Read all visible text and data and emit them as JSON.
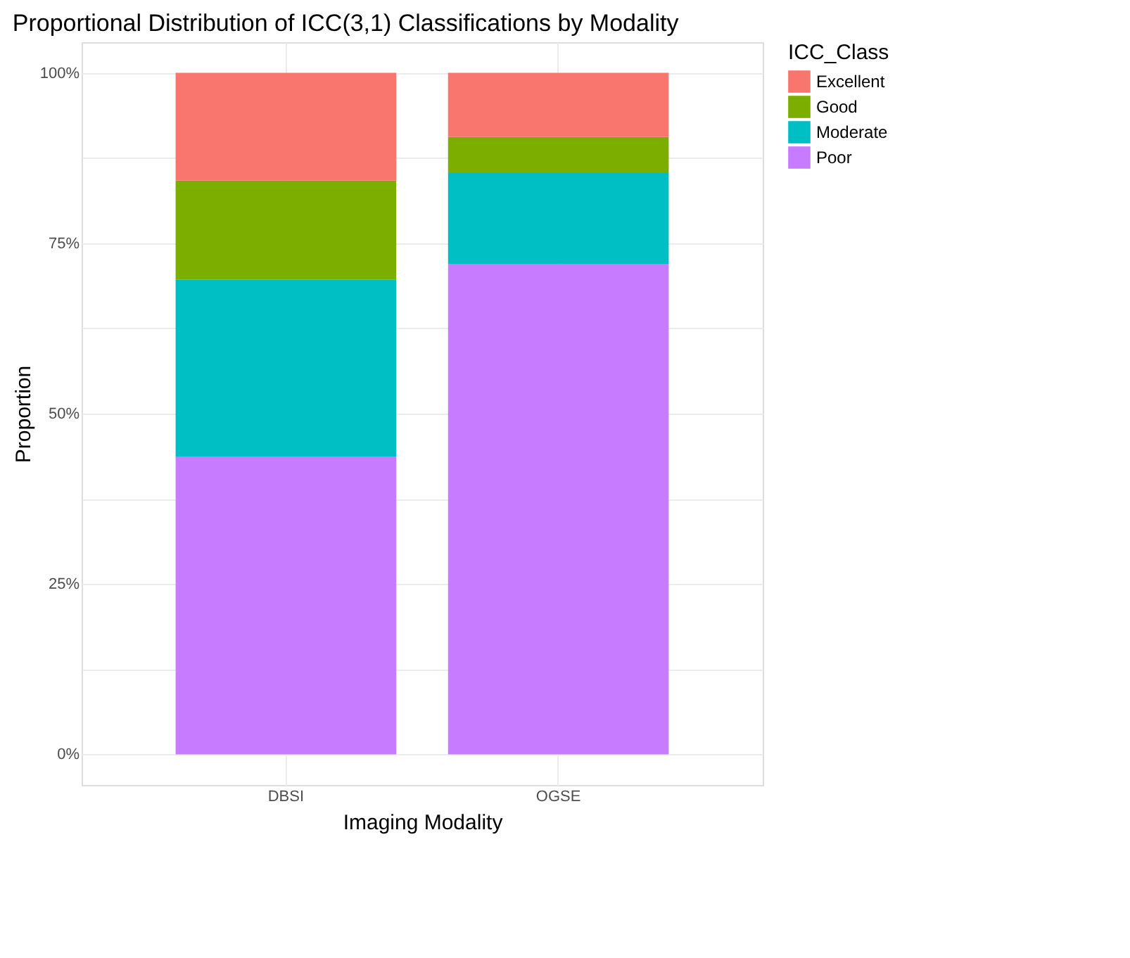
{
  "chart_data": {
    "type": "bar",
    "title": "Proportional Distribution of ICC(3,1) Classifications by Modality",
    "xlabel": "Imaging Modality",
    "ylabel": "Proportion",
    "legend_title": "ICC_Class",
    "categories": [
      "DBSI",
      "OGSE"
    ],
    "stacked": true,
    "series": [
      {
        "name": "Poor",
        "color": "#c77cff",
        "values": [
          43.7,
          71.9
        ]
      },
      {
        "name": "Moderate",
        "color": "#00bfc4",
        "values": [
          26.0,
          13.4
        ]
      },
      {
        "name": "Good",
        "color": "#7cae00",
        "values": [
          14.5,
          5.3
        ]
      },
      {
        "name": "Excellent",
        "color": "#f8766d",
        "values": [
          15.8,
          9.4
        ]
      }
    ],
    "ylim": [
      -4.5,
      104.5
    ],
    "yticks": [
      {
        "value": 0,
        "label": "0%"
      },
      {
        "value": 12.5,
        "label": null
      },
      {
        "value": 25,
        "label": "25%"
      },
      {
        "value": 37.5,
        "label": null
      },
      {
        "value": 50,
        "label": "50%"
      },
      {
        "value": 62.5,
        "label": null
      },
      {
        "value": 75,
        "label": "75%"
      },
      {
        "value": 87.5,
        "label": null
      },
      {
        "value": 100,
        "label": "100%"
      }
    ],
    "grid": true,
    "legend": "right"
  }
}
